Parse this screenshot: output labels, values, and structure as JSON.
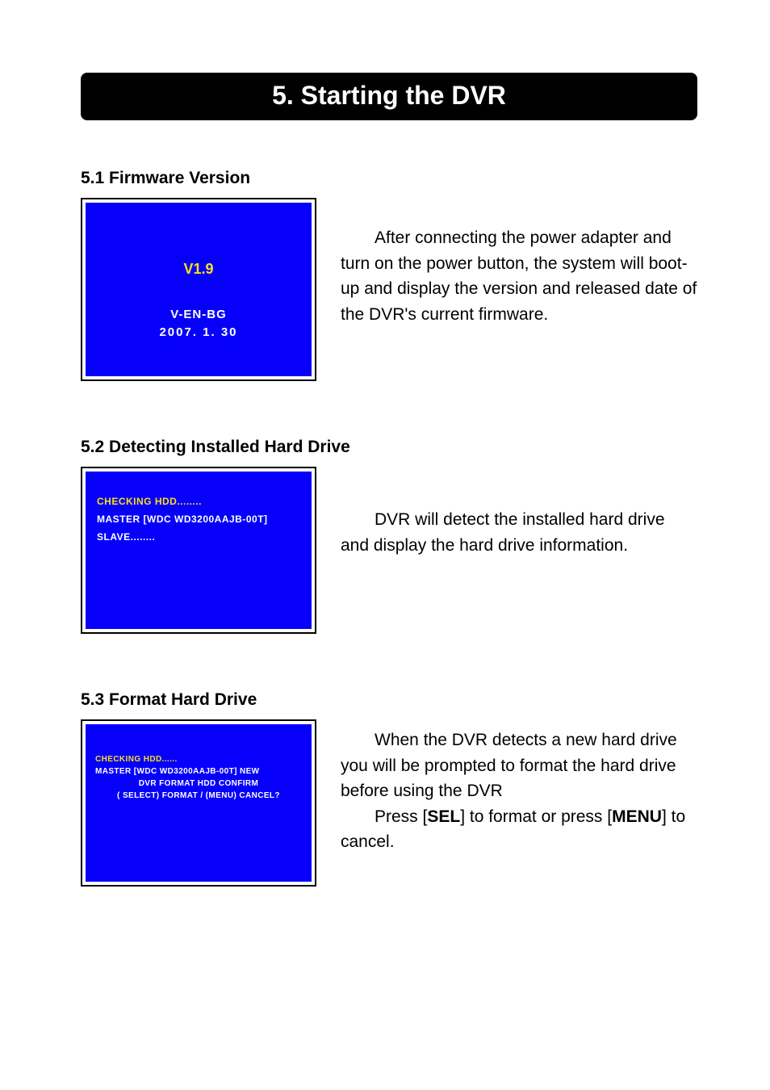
{
  "title": "5. Starting the DVR",
  "sections": [
    {
      "heading": "5.1 Firmware Version",
      "screen": {
        "lines": [
          "V1.9",
          "V-EN-BG",
          "2007. 1. 30"
        ],
        "bg_color": "#0600fb",
        "text_color_primary": "#ffdf1a",
        "text_color_secondary": "#ffffff"
      },
      "body_parts": [
        {
          "text": "After connecting the power adapter and turn on the power button, the system will boot-up and display the version and released date of the DVR's current firmware.",
          "indent": true
        }
      ]
    },
    {
      "heading": "5.2 Detecting Installed Hard Drive",
      "screen": {
        "lines": [
          "CHECKING HDD........",
          "MASTER  [WDC WD3200AAJB-00T]",
          "SLAVE........"
        ],
        "bg_color": "#0600fb",
        "text_color_primary": "#ffdf1a",
        "text_color_secondary": "#ffffff"
      },
      "body_parts": [
        {
          "text": "DVR will detect the installed hard drive and display the hard drive information.",
          "indent": true
        }
      ]
    },
    {
      "heading": "5.3 Format Hard Drive",
      "screen": {
        "lines": [
          "CHECKING HDD......",
          "MASTER  [WDC WD3200AAJB-00T] NEW",
          "DVR FORMAT HDD CONFIRM",
          "( SELECT) FORMAT  / (MENU) CANCEL?"
        ],
        "bg_color": "#0600fb",
        "text_color_primary": "#ffdf1a",
        "text_color_secondary": "#ffffff"
      },
      "body_parts": [
        {
          "text": "When the DVR detects a new hard drive you will be prompted to format the hard drive before using the DVR",
          "indent": true
        },
        {
          "pieces": [
            {
              "t": "Press [",
              "bold": false
            },
            {
              "t": "SEL",
              "bold": true
            },
            {
              "t": "] to format or press [",
              "bold": false
            },
            {
              "t": "MENU",
              "bold": true
            },
            {
              "t": "] to cancel.",
              "bold": false
            }
          ],
          "indent": true
        }
      ]
    }
  ]
}
